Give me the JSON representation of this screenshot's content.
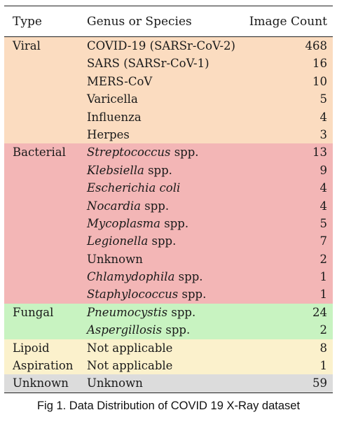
{
  "table": {
    "headers": {
      "type": "Type",
      "genus": "Genus or Species",
      "count": "Image Count"
    },
    "groups": [
      {
        "type": "Viral",
        "color": "#fbdcc0",
        "rows": [
          {
            "prefix": "",
            "italic": "",
            "suffix": "COVID-19 (SARSr-CoV-2)",
            "count": "468"
          },
          {
            "prefix": "",
            "italic": "",
            "suffix": "SARS (SARSr-CoV-1)",
            "count": "16"
          },
          {
            "prefix": "",
            "italic": "",
            "suffix": "MERS-CoV",
            "count": "10"
          },
          {
            "prefix": "",
            "italic": "",
            "suffix": "Varicella",
            "count": "5"
          },
          {
            "prefix": "",
            "italic": "",
            "suffix": "Influenza",
            "count": "4"
          },
          {
            "prefix": "",
            "italic": "",
            "suffix": "Herpes",
            "count": "3"
          }
        ]
      },
      {
        "type": "Bacterial",
        "color": "#f3b6b6",
        "rows": [
          {
            "prefix": "",
            "italic": "Streptococcus",
            "suffix": " spp.",
            "count": "13"
          },
          {
            "prefix": "",
            "italic": "Klebsiella",
            "suffix": " spp.",
            "count": "9"
          },
          {
            "prefix": "",
            "italic": "Escherichia coli",
            "suffix": "",
            "count": "4"
          },
          {
            "prefix": "",
            "italic": "Nocardia",
            "suffix": " spp.",
            "count": "4"
          },
          {
            "prefix": "",
            "italic": "Mycoplasma",
            "suffix": " spp.",
            "count": "5"
          },
          {
            "prefix": "",
            "italic": "Legionella",
            "suffix": " spp.",
            "count": "7"
          },
          {
            "prefix": "",
            "italic": "",
            "suffix": "Unknown",
            "count": "2"
          },
          {
            "prefix": "",
            "italic": "Chlamydophila",
            "suffix": " spp.",
            "count": "1"
          },
          {
            "prefix": "",
            "italic": "Staphylococcus",
            "suffix": " spp.",
            "count": "1"
          }
        ]
      },
      {
        "type": "Fungal",
        "color": "#c8f3c1",
        "rows": [
          {
            "prefix": "",
            "italic": "Pneumocystis",
            "suffix": " spp.",
            "count": "24"
          },
          {
            "prefix": "",
            "italic": "Aspergillosis",
            "suffix": " spp.",
            "count": "2"
          }
        ]
      },
      {
        "type": "Lipoid",
        "type2": "Aspiration",
        "color": "#fbf1cc",
        "rows": [
          {
            "prefix": "",
            "italic": "",
            "suffix": "Not applicable",
            "count": "8"
          },
          {
            "prefix": "",
            "italic": "",
            "suffix": "Not applicable",
            "count": "1"
          }
        ]
      },
      {
        "type": "Unknown",
        "color": "#dcdcdc",
        "rows": [
          {
            "prefix": "",
            "italic": "",
            "suffix": "Unknown",
            "count": "59"
          }
        ]
      }
    ]
  },
  "caption": "Fig 1. Data Distribution of COVID 19 X-Ray dataset"
}
